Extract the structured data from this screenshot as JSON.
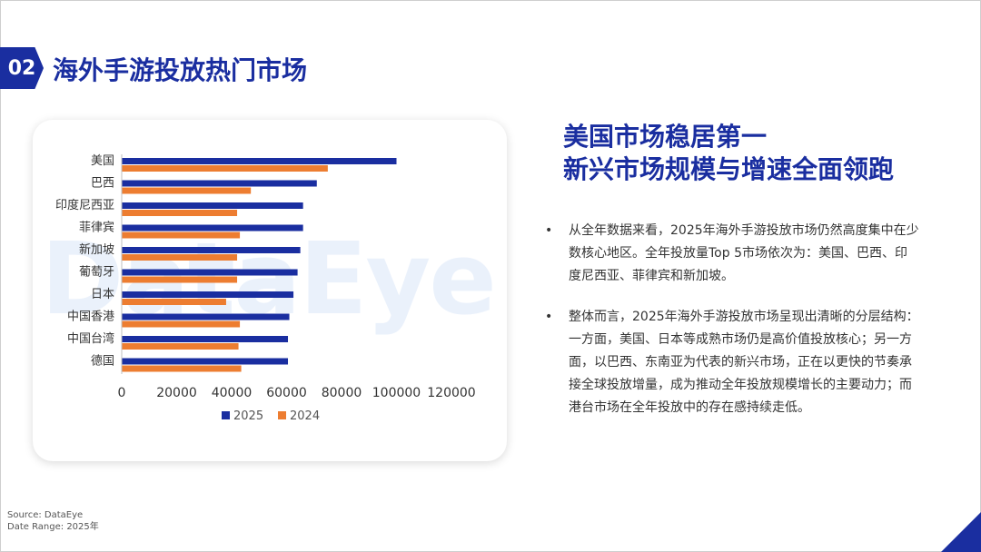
{
  "section": {
    "number": "02",
    "title": "海外手游投放热门市场"
  },
  "watermark": "DataEye",
  "headline": {
    "line1": "美国市场稳居第一",
    "line2": "新兴市场规模与增速全面领跑"
  },
  "bullets": [
    {
      "dot": "•",
      "text": "从全年数据来看，2025年海外手游投放市场仍然高度集中在少数核心地区。全年投放量Top 5市场依次为：美国、巴西、印度尼西亚、菲律宾和新加坡。"
    },
    {
      "dot": "•",
      "text": "整体而言，2025年海外手游投放市场呈现出清晰的分层结构：一方面，美国、日本等成熟市场仍是高价值投放核心；另一方面，以巴西、东南亚为代表的新兴市场，正在以更快的节奏承接全球投放增量，成为推动全年投放规模增长的主要动力；而港台市场在全年投放中的存在感持续走低。"
    }
  ],
  "footer": {
    "source": "Source: DataEye",
    "range": "Date Range: 2025年"
  },
  "colors": {
    "brand": "#1a2ea0",
    "series_2025": "#1a2ea0",
    "series_2024": "#ed7d31"
  },
  "chart_data": {
    "type": "bar",
    "orientation": "horizontal",
    "categories": [
      "美国",
      "巴西",
      "印度尼西亚",
      "菲律宾",
      "新加坡",
      "葡萄牙",
      "日本",
      "中国香港",
      "中国台湾",
      "德国"
    ],
    "series": [
      {
        "name": "2025",
        "values": [
          100000,
          71000,
          66000,
          66000,
          65000,
          64000,
          62500,
          61000,
          60500,
          60500
        ],
        "color": "#1a2ea0"
      },
      {
        "name": "2024",
        "values": [
          75000,
          47000,
          42000,
          43000,
          42000,
          42000,
          38000,
          43000,
          42500,
          43500
        ],
        "color": "#ed7d31"
      }
    ],
    "xlim": [
      0,
      120000
    ],
    "xticks": [
      0,
      20000,
      40000,
      60000,
      80000,
      100000,
      120000
    ],
    "grid": false,
    "legend": "bottom"
  }
}
